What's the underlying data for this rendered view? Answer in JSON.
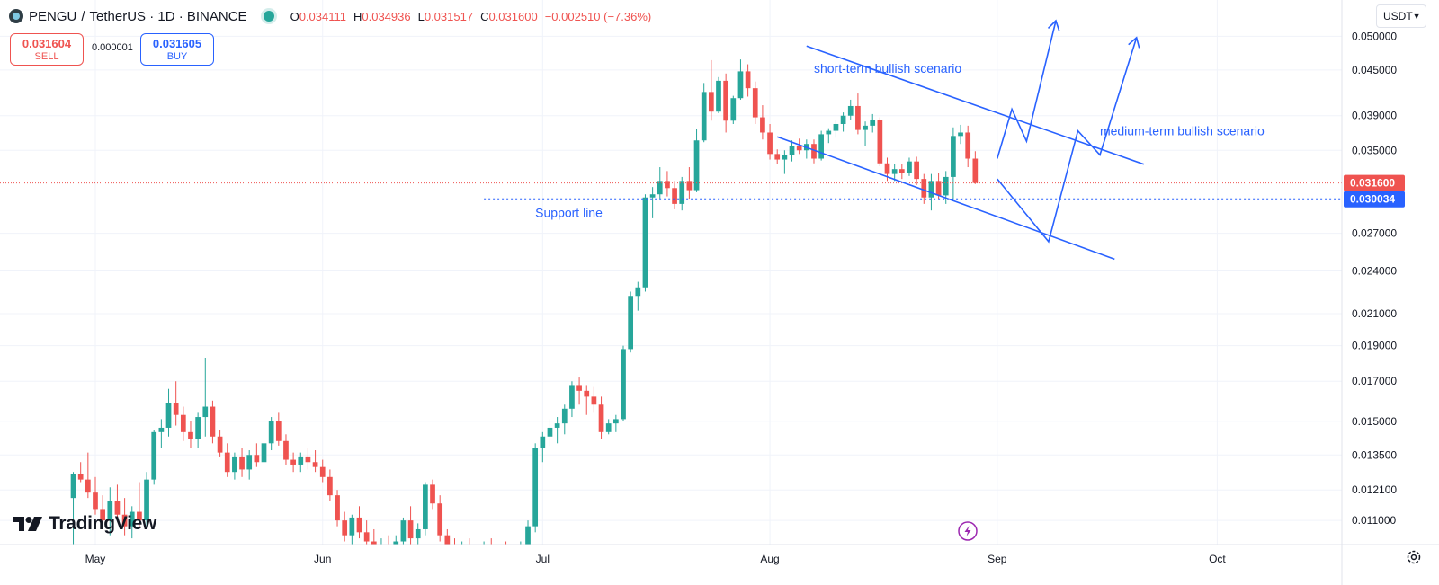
{
  "header": {
    "symbol": "PENGU",
    "pair_sep": "/",
    "quote": "TetherUS · 1D · BINANCE",
    "ohlc": [
      {
        "k": "O",
        "v": "0.034111"
      },
      {
        "k": "H",
        "v": "0.034936"
      },
      {
        "k": "L",
        "v": "0.031517"
      },
      {
        "k": "C",
        "v": "0.031600"
      }
    ],
    "change": "−0.002510 (−7.36%)"
  },
  "trade": {
    "sell_price": "0.031604",
    "sell_label": "SELL",
    "spread": "0.000001",
    "buy_price": "0.031605",
    "buy_label": "BUY"
  },
  "currency": {
    "label": "USDT"
  },
  "branding": {
    "name": "TradingView"
  },
  "colors": {
    "up": "#26a69a",
    "down": "#ef5350",
    "drawing": "#2962ff",
    "current_price": "#ef5350",
    "support": "#2962ff"
  },
  "chart_data": {
    "type": "candlestick",
    "symbol": "PENGU / TetherUS",
    "interval": "1D",
    "exchange": "BINANCE",
    "y_scale": "log",
    "y_ticks": [
      "0.050000",
      "0.045000",
      "0.039000",
      "0.035000",
      "0.027000",
      "0.024000",
      "0.021000",
      "0.019000",
      "0.017000",
      "0.015000",
      "0.013500",
      "0.012100",
      "0.011000"
    ],
    "y_tick_values": [
      0.05,
      0.045,
      0.039,
      0.035,
      0.027,
      0.024,
      0.021,
      0.019,
      0.017,
      0.015,
      0.0135,
      0.0121,
      0.011
    ],
    "x_ticks": [
      "May",
      "Jun",
      "Jul",
      "Aug",
      "Sep",
      "Oct"
    ],
    "x_tick_days": [
      0,
      31,
      61,
      92,
      123,
      153
    ],
    "ylim": [
      0.0102,
      0.056
    ],
    "xlim": [
      -13,
      170
    ],
    "current_price": {
      "label": "0.031600",
      "value": 0.0316
    },
    "support_level": {
      "label": "0.030034",
      "value": 0.030034
    },
    "candles_ohlc": [
      [
        -3,
        0.0118,
        0.0128,
        0.0101,
        0.0127
      ],
      [
        -2,
        0.0127,
        0.0132,
        0.0124,
        0.0125
      ],
      [
        -1,
        0.0125,
        0.0136,
        0.0118,
        0.012
      ],
      [
        0,
        0.012,
        0.0126,
        0.0112,
        0.0114
      ],
      [
        1,
        0.0114,
        0.0119,
        0.0108,
        0.011
      ],
      [
        2,
        0.011,
        0.0122,
        0.0105,
        0.0117
      ],
      [
        3,
        0.0117,
        0.0123,
        0.011,
        0.0112
      ],
      [
        4,
        0.0112,
        0.0118,
        0.0105,
        0.0108
      ],
      [
        5,
        0.0108,
        0.0115,
        0.0104,
        0.0113
      ],
      [
        6,
        0.0113,
        0.0124,
        0.0108,
        0.011
      ],
      [
        7,
        0.011,
        0.0128,
        0.0107,
        0.0125
      ],
      [
        8,
        0.0125,
        0.0146,
        0.0123,
        0.0145
      ],
      [
        9,
        0.0145,
        0.0151,
        0.0138,
        0.0147
      ],
      [
        10,
        0.0147,
        0.0166,
        0.0143,
        0.0159
      ],
      [
        11,
        0.0159,
        0.017,
        0.0148,
        0.0153
      ],
      [
        12,
        0.0153,
        0.0157,
        0.0141,
        0.0145
      ],
      [
        13,
        0.0145,
        0.015,
        0.0138,
        0.0142
      ],
      [
        14,
        0.0142,
        0.0154,
        0.0138,
        0.0152
      ],
      [
        15,
        0.0152,
        0.0183,
        0.0143,
        0.0157
      ],
      [
        16,
        0.0157,
        0.016,
        0.014,
        0.0143
      ],
      [
        17,
        0.0143,
        0.0146,
        0.0134,
        0.0136
      ],
      [
        18,
        0.0136,
        0.014,
        0.0126,
        0.0128
      ],
      [
        19,
        0.0128,
        0.0136,
        0.0125,
        0.0134
      ],
      [
        20,
        0.0134,
        0.0138,
        0.0126,
        0.0129
      ],
      [
        21,
        0.0129,
        0.0137,
        0.0125,
        0.0135
      ],
      [
        22,
        0.0135,
        0.014,
        0.013,
        0.0132
      ],
      [
        23,
        0.0132,
        0.0142,
        0.0129,
        0.014
      ],
      [
        24,
        0.014,
        0.0152,
        0.0137,
        0.015
      ],
      [
        25,
        0.015,
        0.0154,
        0.0139,
        0.0141
      ],
      [
        26,
        0.0141,
        0.0144,
        0.0131,
        0.0133
      ],
      [
        27,
        0.0133,
        0.0136,
        0.0128,
        0.0131
      ],
      [
        28,
        0.0131,
        0.0136,
        0.0128,
        0.0134
      ],
      [
        29,
        0.0134,
        0.0138,
        0.0129,
        0.0132
      ],
      [
        30,
        0.0132,
        0.0137,
        0.0128,
        0.013
      ],
      [
        31,
        0.013,
        0.0133,
        0.0124,
        0.0126
      ],
      [
        32,
        0.0126,
        0.0129,
        0.0117,
        0.0119
      ],
      [
        33,
        0.0119,
        0.0121,
        0.0108,
        0.011
      ],
      [
        34,
        0.011,
        0.0113,
        0.0103,
        0.0105
      ],
      [
        35,
        0.0105,
        0.0112,
        0.0102,
        0.0111
      ],
      [
        36,
        0.0111,
        0.0115,
        0.0104,
        0.0106
      ],
      [
        37,
        0.0106,
        0.011,
        0.0101,
        0.0103
      ],
      [
        38,
        0.0103,
        0.0107,
        0.01,
        0.0101
      ],
      [
        39,
        0.0101,
        0.0104,
        0.0099,
        0.0102
      ],
      [
        40,
        0.0102,
        0.0105,
        0.0098,
        0.01
      ],
      [
        41,
        0.01,
        0.0105,
        0.0098,
        0.0103
      ],
      [
        42,
        0.0103,
        0.0111,
        0.0102,
        0.011
      ],
      [
        43,
        0.011,
        0.0115,
        0.0101,
        0.0104
      ],
      [
        44,
        0.0104,
        0.0109,
        0.0101,
        0.0107
      ],
      [
        45,
        0.0107,
        0.0124,
        0.0105,
        0.0123
      ],
      [
        46,
        0.0123,
        0.0125,
        0.0114,
        0.0116
      ],
      [
        47,
        0.0116,
        0.0119,
        0.0103,
        0.0105
      ],
      [
        48,
        0.0105,
        0.0107,
        0.01,
        0.0102
      ],
      [
        49,
        0.0102,
        0.0104,
        0.0099,
        0.0101
      ],
      [
        50,
        0.0101,
        0.0103,
        0.0099,
        0.0102
      ],
      [
        51,
        0.0102,
        0.0104,
        0.0099,
        0.01
      ],
      [
        52,
        0.01,
        0.0102,
        0.0098,
        0.0101
      ],
      [
        53,
        0.0101,
        0.0103,
        0.0099,
        0.0102
      ],
      [
        54,
        0.0102,
        0.0104,
        0.0099,
        0.01
      ],
      [
        55,
        0.01,
        0.0102,
        0.0098,
        0.0101
      ],
      [
        56,
        0.0101,
        0.0103,
        0.0099,
        0.01
      ],
      [
        57,
        0.01,
        0.0102,
        0.0098,
        0.0101
      ],
      [
        58,
        0.0101,
        0.0103,
        0.0099,
        0.0102
      ],
      [
        59,
        0.0102,
        0.011,
        0.0101,
        0.0108
      ],
      [
        60,
        0.0108,
        0.014,
        0.0106,
        0.0138
      ],
      [
        61,
        0.0138,
        0.0145,
        0.0132,
        0.0143
      ],
      [
        62,
        0.0143,
        0.0151,
        0.0139,
        0.0147
      ],
      [
        63,
        0.0147,
        0.0152,
        0.014,
        0.0149
      ],
      [
        64,
        0.0149,
        0.0158,
        0.0144,
        0.0156
      ],
      [
        65,
        0.0156,
        0.017,
        0.0152,
        0.0168
      ],
      [
        66,
        0.0168,
        0.0172,
        0.0158,
        0.0165
      ],
      [
        67,
        0.0165,
        0.0168,
        0.0153,
        0.0162
      ],
      [
        68,
        0.0162,
        0.0167,
        0.0154,
        0.0158
      ],
      [
        69,
        0.0158,
        0.0162,
        0.0142,
        0.0145
      ],
      [
        70,
        0.0145,
        0.0151,
        0.0144,
        0.0149
      ],
      [
        71,
        0.0149,
        0.0153,
        0.0145,
        0.0151
      ],
      [
        72,
        0.0151,
        0.019,
        0.015,
        0.0188
      ],
      [
        73,
        0.0188,
        0.0225,
        0.0186,
        0.0222
      ],
      [
        74,
        0.0222,
        0.0232,
        0.0212,
        0.0228
      ],
      [
        75,
        0.0228,
        0.0305,
        0.0225,
        0.0302
      ],
      [
        76,
        0.0302,
        0.0312,
        0.0283,
        0.0305
      ],
      [
        77,
        0.0305,
        0.0332,
        0.0301,
        0.0318
      ],
      [
        78,
        0.0318,
        0.0328,
        0.0303,
        0.0311
      ],
      [
        79,
        0.0311,
        0.0318,
        0.0291,
        0.0296
      ],
      [
        80,
        0.0296,
        0.0322,
        0.029,
        0.0318
      ],
      [
        81,
        0.0318,
        0.0332,
        0.03,
        0.0309
      ],
      [
        82,
        0.0309,
        0.0374,
        0.0307,
        0.0361
      ],
      [
        83,
        0.0361,
        0.0432,
        0.0359,
        0.042
      ],
      [
        84,
        0.042,
        0.0464,
        0.0384,
        0.0395
      ],
      [
        85,
        0.0395,
        0.044,
        0.0393,
        0.0435
      ],
      [
        86,
        0.0435,
        0.0445,
        0.037,
        0.0384
      ],
      [
        87,
        0.0384,
        0.0415,
        0.038,
        0.0412
      ],
      [
        88,
        0.0412,
        0.0465,
        0.041,
        0.0448
      ],
      [
        89,
        0.0448,
        0.0458,
        0.0414,
        0.0425
      ],
      [
        90,
        0.0425,
        0.0434,
        0.038,
        0.0388
      ],
      [
        91,
        0.0388,
        0.0403,
        0.0362,
        0.037
      ],
      [
        92,
        0.037,
        0.038,
        0.034,
        0.0346
      ],
      [
        93,
        0.0346,
        0.0351,
        0.0335,
        0.034
      ],
      [
        94,
        0.034,
        0.035,
        0.0325,
        0.0345
      ],
      [
        95,
        0.0345,
        0.0361,
        0.0338,
        0.0355
      ],
      [
        96,
        0.0355,
        0.0363,
        0.0346,
        0.035
      ],
      [
        97,
        0.035,
        0.0362,
        0.0341,
        0.0357
      ],
      [
        98,
        0.0357,
        0.0362,
        0.0336,
        0.0341
      ],
      [
        99,
        0.0341,
        0.0372,
        0.0339,
        0.0368
      ],
      [
        100,
        0.0368,
        0.0375,
        0.0358,
        0.0372
      ],
      [
        101,
        0.0372,
        0.0385,
        0.0364,
        0.038
      ],
      [
        102,
        0.038,
        0.0394,
        0.0371,
        0.039
      ],
      [
        103,
        0.039,
        0.041,
        0.0385,
        0.0402
      ],
      [
        104,
        0.0402,
        0.0418,
        0.0368,
        0.0373
      ],
      [
        105,
        0.0373,
        0.0383,
        0.0355,
        0.0378
      ],
      [
        106,
        0.0378,
        0.0392,
        0.037,
        0.0385
      ],
      [
        107,
        0.0385,
        0.0388,
        0.0333,
        0.0336
      ],
      [
        108,
        0.0336,
        0.0342,
        0.0318,
        0.0325
      ],
      [
        109,
        0.0325,
        0.0335,
        0.0318,
        0.033
      ],
      [
        110,
        0.033,
        0.0335,
        0.032,
        0.0326
      ],
      [
        111,
        0.0326,
        0.0342,
        0.0323,
        0.0338
      ],
      [
        112,
        0.0338,
        0.0343,
        0.0314,
        0.032
      ],
      [
        113,
        0.032,
        0.0325,
        0.0296,
        0.0302
      ],
      [
        114,
        0.0302,
        0.0325,
        0.029,
        0.0318
      ],
      [
        115,
        0.0318,
        0.0326,
        0.03,
        0.0304
      ],
      [
        116,
        0.0304,
        0.0328,
        0.0296,
        0.0322
      ],
      [
        117,
        0.0322,
        0.0376,
        0.03,
        0.0366
      ],
      [
        118,
        0.0366,
        0.0379,
        0.0357,
        0.037
      ],
      [
        119,
        0.037,
        0.0378,
        0.0332,
        0.0341
      ],
      [
        120,
        0.0341,
        0.0349,
        0.0315,
        0.0316
      ]
    ],
    "drawings": {
      "channel_upper": [
        [
          97,
          0.0485
        ],
        [
          143,
          0.0335
        ]
      ],
      "channel_lower": [
        [
          93,
          0.0365
        ],
        [
          139,
          0.0249
        ]
      ],
      "support_dotted": {
        "from_day": 53,
        "value": 0.030034
      },
      "short_term_path": [
        [
          123,
          0.0341
        ],
        [
          125,
          0.0398
        ],
        [
          127,
          0.036
        ],
        [
          131,
          0.0525
        ]
      ],
      "medium_term_path": [
        [
          123,
          0.032
        ],
        [
          130,
          0.0263
        ],
        [
          134,
          0.0372
        ],
        [
          137,
          0.0345
        ],
        [
          142,
          0.0498
        ]
      ]
    },
    "annotations": {
      "short_term": "short-term bullish scenario",
      "medium_term": "medium-term bullish scenario",
      "support": "Support line"
    }
  }
}
